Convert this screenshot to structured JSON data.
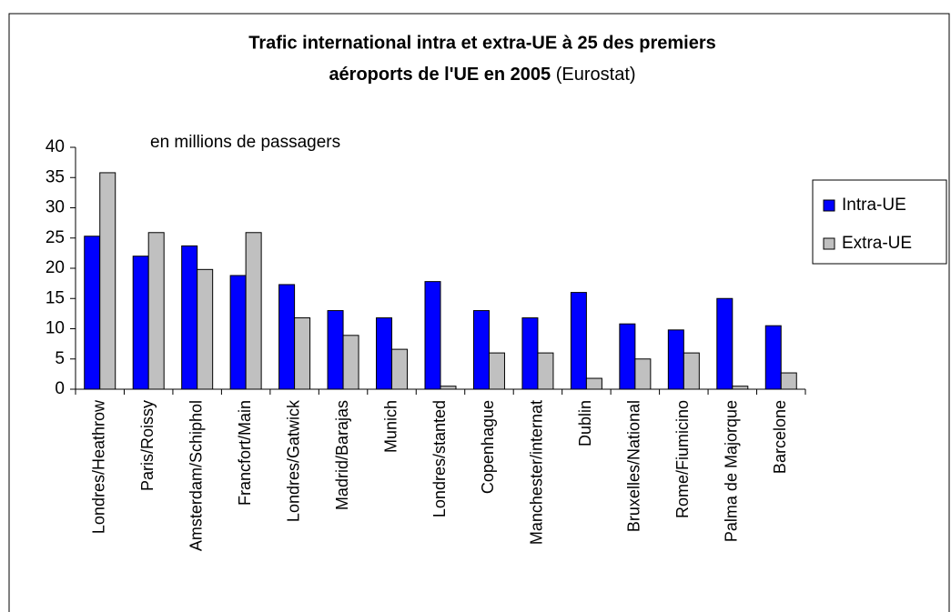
{
  "chart_data": {
    "type": "bar",
    "title": [
      "Trafic international intra et extra-UE à 25 des premiers",
      "aéroports de l'UE en 2005"
    ],
    "title_note": "(Eurostat)",
    "annotation": "en millions de passagers",
    "categories": [
      "Londres/Heathrow",
      "Paris/Roissy",
      "Amsterdam/Schiphol",
      "Francfort/Main",
      "Londres/Gatwick",
      "Madrid/Barajas",
      "Munich",
      "Londres/stanted",
      "Copenhague",
      "Manchester/internat",
      "Dublin",
      "Bruxelles/National",
      "Rome/Fiumicino",
      "Palma de Majorque",
      "Barcelone"
    ],
    "series": [
      {
        "name": "Intra-UE",
        "color": "#0000ff",
        "values": [
          25.3,
          22,
          23.7,
          18.8,
          17.3,
          13,
          11.8,
          17.8,
          13,
          11.8,
          16,
          10.8,
          9.8,
          15,
          10.5
        ]
      },
      {
        "name": "Extra-UE",
        "color": "#c0c0c0",
        "values": [
          35.8,
          25.9,
          19.8,
          25.9,
          11.8,
          8.9,
          6.6,
          0.5,
          6,
          6,
          1.8,
          5,
          6,
          0.5,
          2.7
        ]
      }
    ],
    "ylim": [
      0,
      40
    ],
    "yticks": [
      0,
      5,
      10,
      15,
      20,
      25,
      30,
      35,
      40
    ],
    "grid": false,
    "legend": "right"
  }
}
